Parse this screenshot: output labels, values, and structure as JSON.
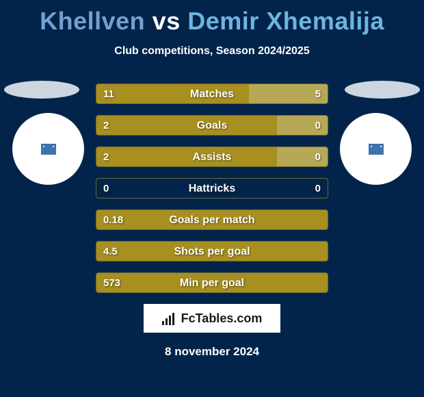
{
  "title": {
    "player1": "Khellven",
    "vs": "vs",
    "player2": "Demir Xhemalija",
    "player1_color": "#74a0d1",
    "player2_color": "#6fb3e0"
  },
  "subtitle": "Club competitions, Season 2024/2025",
  "styling": {
    "background": "#02244a",
    "bar_left_color": "#a78f20",
    "bar_right_color": "#b7a856",
    "row_border_color": "rgba(167,143,32,0.65)",
    "text_color": "#ffffff",
    "ellipse_color": "#cdd6de",
    "circle_color": "#ffffff",
    "badge_color": "#3d73ad"
  },
  "rows": [
    {
      "label": "Matches",
      "left_val": "11",
      "right_val": "5",
      "left_pct": 66,
      "right_pct": 34
    },
    {
      "label": "Goals",
      "left_val": "2",
      "right_val": "0",
      "left_pct": 78,
      "right_pct": 22
    },
    {
      "label": "Assists",
      "left_val": "2",
      "right_val": "0",
      "left_pct": 78,
      "right_pct": 22
    },
    {
      "label": "Hattricks",
      "left_val": "0",
      "right_val": "0",
      "left_pct": 0,
      "right_pct": 0
    },
    {
      "label": "Goals per match",
      "left_val": "0.18",
      "right_val": "",
      "left_pct": 100,
      "right_pct": 0
    },
    {
      "label": "Shots per goal",
      "left_val": "4.5",
      "right_val": "",
      "left_pct": 100,
      "right_pct": 0
    },
    {
      "label": "Min per goal",
      "left_val": "573",
      "right_val": "",
      "left_pct": 100,
      "right_pct": 0
    }
  ],
  "logo_text": "FcTables.com",
  "date": "8 november 2024"
}
